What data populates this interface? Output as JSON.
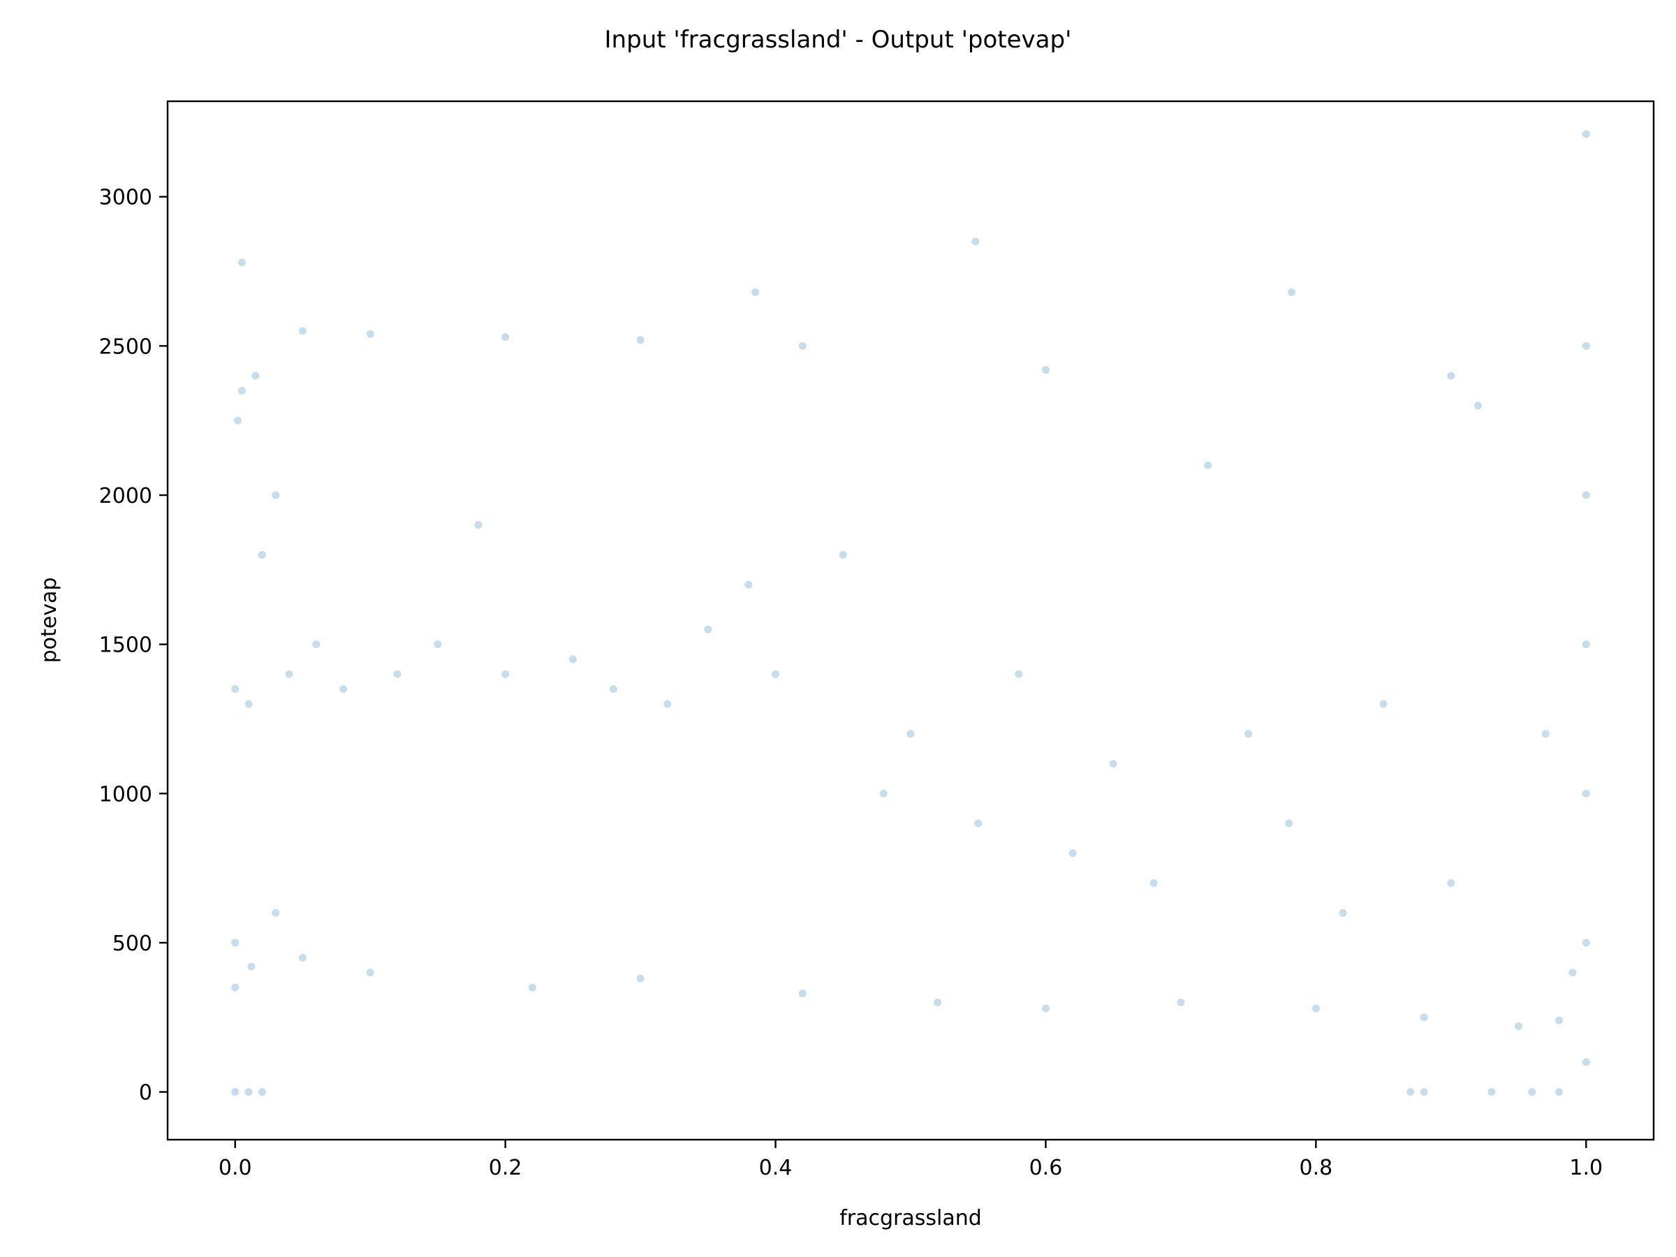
{
  "chart_data": {
    "type": "scatter",
    "title": "Input 'fracgrassland' - Output 'potevap'",
    "xlabel": "fracgrassland",
    "ylabel": "potevap",
    "xlim": [
      -0.05,
      1.05
    ],
    "ylim": [
      -160,
      3320
    ],
    "x_ticks": [
      0.0,
      0.2,
      0.4,
      0.6,
      0.8,
      1.0
    ],
    "x_tick_labels": [
      "0.0",
      "0.2",
      "0.4",
      "0.6",
      "0.8",
      "1.0"
    ],
    "y_ticks": [
      0,
      500,
      1000,
      1500,
      2000,
      2500,
      3000
    ],
    "y_tick_labels": [
      "0",
      "500",
      "1000",
      "1500",
      "2000",
      "2500",
      "3000"
    ],
    "grid": false,
    "legend": "none",
    "marker_color": "#1f77b4",
    "marker_opacity": 0.25,
    "series": [
      {
        "x": [
          0.0,
          0.0,
          0.0,
          0.002,
          0.005,
          0.01,
          0.012,
          0.015,
          0.02,
          0.03,
          0.03,
          0.04,
          0.05,
          0.06,
          0.08,
          0.1,
          0.12,
          0.15,
          0.18,
          0.2,
          0.22,
          0.25,
          0.28,
          0.3,
          0.32,
          0.35,
          0.38,
          0.4,
          0.42,
          0.45,
          0.48,
          0.5,
          0.52,
          0.55,
          0.58,
          0.6,
          0.62,
          0.65,
          0.68,
          0.7,
          0.72,
          0.75,
          0.78,
          0.8,
          0.82,
          0.85,
          0.88,
          0.9,
          0.92,
          0.95,
          0.97,
          0.98,
          0.99,
          1.0,
          1.0,
          1.0,
          1.0,
          1.0,
          1.0,
          1.0,
          0.0,
          0.01,
          0.02,
          0.87,
          0.88,
          0.93,
          0.96,
          0.98,
          0.005,
          0.548,
          0.385,
          0.782,
          0.42,
          0.3,
          0.2,
          0.1,
          0.05,
          0.6,
          0.9
        ],
        "y": [
          350,
          500,
          1350,
          2250,
          2780,
          1300,
          420,
          2400,
          1800,
          2000,
          600,
          1400,
          450,
          1500,
          1350,
          400,
          1400,
          1500,
          1900,
          1400,
          350,
          1450,
          1350,
          380,
          1300,
          1550,
          1700,
          1400,
          330,
          1800,
          1000,
          1200,
          300,
          900,
          1400,
          280,
          800,
          1100,
          700,
          300,
          2100,
          1200,
          900,
          280,
          600,
          1300,
          250,
          700,
          2300,
          220,
          1200,
          240,
          400,
          100,
          500,
          1000,
          1500,
          2000,
          2500,
          3210,
          0,
          0,
          0,
          0,
          0,
          0,
          0,
          0,
          2350,
          2850,
          2680,
          2680,
          2500,
          2520,
          2530,
          2540,
          2550,
          2420,
          2400
        ]
      }
    ]
  }
}
